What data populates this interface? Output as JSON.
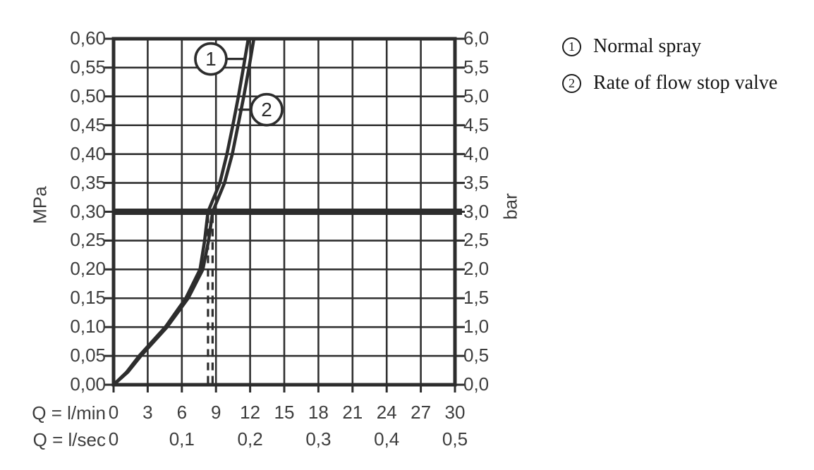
{
  "chart_data": {
    "type": "line",
    "title": "",
    "x_axis": {
      "label_lmin": "Q = l/min",
      "label_lsec": "Q = l/sec",
      "min": 0,
      "max": 30,
      "ticks_lmin": [
        {
          "value": 0,
          "label": "0"
        },
        {
          "value": 3,
          "label": "3"
        },
        {
          "value": 6,
          "label": "6"
        },
        {
          "value": 9,
          "label": "9"
        },
        {
          "value": 12,
          "label": "12"
        },
        {
          "value": 15,
          "label": "15"
        },
        {
          "value": 18,
          "label": "18"
        },
        {
          "value": 21,
          "label": "21"
        },
        {
          "value": 24,
          "label": "24"
        },
        {
          "value": 27,
          "label": "27"
        },
        {
          "value": 30,
          "label": "30"
        }
      ],
      "ticks_lsec": [
        {
          "at_lmin": 0,
          "label": "0"
        },
        {
          "at_lmin": 6,
          "label": "0,1"
        },
        {
          "at_lmin": 12,
          "label": "0,2"
        },
        {
          "at_lmin": 18,
          "label": "0,3"
        },
        {
          "at_lmin": 24,
          "label": "0,4"
        },
        {
          "at_lmin": 30,
          "label": "0,5"
        }
      ],
      "grid_step": 3
    },
    "y_axis_left": {
      "label": "MPa",
      "min": 0,
      "max": 0.6,
      "ticks": [
        {
          "value": 0.6,
          "label": "0,60"
        },
        {
          "value": 0.55,
          "label": "0,55"
        },
        {
          "value": 0.5,
          "label": "0,50"
        },
        {
          "value": 0.45,
          "label": "0,45"
        },
        {
          "value": 0.4,
          "label": "0,40"
        },
        {
          "value": 0.35,
          "label": "0,35"
        },
        {
          "value": 0.3,
          "label": "0,30"
        },
        {
          "value": 0.25,
          "label": "0,25"
        },
        {
          "value": 0.2,
          "label": "0,20"
        },
        {
          "value": 0.15,
          "label": "0,15"
        },
        {
          "value": 0.1,
          "label": "0,10"
        },
        {
          "value": 0.05,
          "label": "0,05"
        },
        {
          "value": 0.0,
          "label": "0,00"
        }
      ],
      "grid_step": 0.05
    },
    "y_axis_right": {
      "label": "bar",
      "min": 0,
      "max": 6,
      "ticks": [
        {
          "value": 6.0,
          "label": "6,0"
        },
        {
          "value": 5.5,
          "label": "5,5"
        },
        {
          "value": 5.0,
          "label": "5,0"
        },
        {
          "value": 4.5,
          "label": "4,5"
        },
        {
          "value": 4.0,
          "label": "4,0"
        },
        {
          "value": 3.5,
          "label": "3,5"
        },
        {
          "value": 3.0,
          "label": "3,0"
        },
        {
          "value": 2.5,
          "label": "2,5"
        },
        {
          "value": 2.0,
          "label": "2,0"
        },
        {
          "value": 1.5,
          "label": "1,5"
        },
        {
          "value": 1.0,
          "label": "1,0"
        },
        {
          "value": 0.5,
          "label": "0,5"
        },
        {
          "value": 0.0,
          "label": "0,0"
        }
      ]
    },
    "series": [
      {
        "name": "Normal spray",
        "marker": "1",
        "points_q_lmin_p_mpa": [
          [
            0,
            0
          ],
          [
            1.15,
            0.022
          ],
          [
            2.25,
            0.05
          ],
          [
            4.55,
            0.1
          ],
          [
            6.35,
            0.15
          ],
          [
            7.6,
            0.2
          ],
          [
            8.0,
            0.25
          ],
          [
            8.3,
            0.3
          ],
          [
            9.34,
            0.35
          ],
          [
            9.96,
            0.4
          ],
          [
            10.48,
            0.45
          ],
          [
            10.97,
            0.5
          ],
          [
            11.41,
            0.55
          ],
          [
            11.84,
            0.6
          ]
        ]
      },
      {
        "name": "Rate of flow stop valve",
        "marker": "2",
        "points_q_lmin_p_mpa": [
          [
            0,
            0
          ],
          [
            1.25,
            0.022
          ],
          [
            2.4,
            0.05
          ],
          [
            4.7,
            0.1
          ],
          [
            6.55,
            0.15
          ],
          [
            7.85,
            0.2
          ],
          [
            8.35,
            0.25
          ],
          [
            8.71,
            0.3
          ],
          [
            9.75,
            0.35
          ],
          [
            10.43,
            0.4
          ],
          [
            10.94,
            0.45
          ],
          [
            11.44,
            0.5
          ],
          [
            11.9,
            0.55
          ],
          [
            12.33,
            0.6
          ]
        ]
      }
    ],
    "reference_lines": {
      "horizontal_pressure_mpa": 0.3,
      "horizontal_pressure_bar": 3.0,
      "vertical_dashed_lmin": [
        8.3,
        8.7
      ]
    },
    "annotations": [
      {
        "marker": "1",
        "circle_q": 8.55,
        "circle_p": 0.565,
        "leader_to_q": 11.45
      },
      {
        "marker": "2",
        "circle_q": 13.45,
        "circle_p": 0.477,
        "leader_to_q": 10.95
      }
    ],
    "grid": true,
    "legend_position": "top-right-outside",
    "colors": {
      "line": "#2d2d2d",
      "grid": "#313131",
      "tick_label": "#3d3d3d",
      "legend_text": "#141414",
      "background": "#ffffff"
    }
  },
  "legend": {
    "items": [
      {
        "marker": "1",
        "label": "Normal spray"
      },
      {
        "marker": "2",
        "label": "Rate of flow stop valve"
      }
    ]
  }
}
